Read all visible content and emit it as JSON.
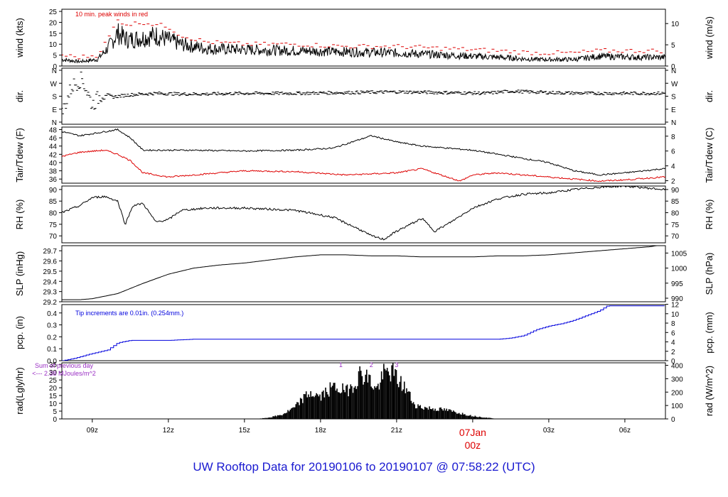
{
  "footer_title": "UW Rooftop Data for 20190106  to  20190107 @ 07:58:22  (UTC)",
  "colors": {
    "frame": "#000000",
    "accent_red": "#dd0000",
    "accent_blue": "#0000dd",
    "accent_purple": "#9a2fc4",
    "title_blue": "#1a1ad0"
  },
  "chart_data": [
    {
      "id": "wind",
      "type": "line",
      "ylabel": "wind (kts)",
      "y2label": "wind (m/s)",
      "ylim": [
        0,
        26
      ],
      "yticks": [
        "0",
        "5",
        "10",
        "15",
        "20",
        "25"
      ],
      "y2ticks": [
        "0",
        "5",
        "10"
      ],
      "annotation": "10 min. peak winds in red",
      "series": [
        {
          "name": "",
          "x": [
            7.8,
            8.5,
            9.2,
            9.6,
            10.0,
            10.4,
            11.0,
            11.5,
            12.0,
            12.5,
            13.5,
            15.0,
            17.0,
            19.0,
            21.0,
            23.0,
            25.0,
            26.5,
            28.0,
            29.0,
            30.5,
            31.5
          ],
          "values": [
            3,
            2,
            3,
            8,
            15,
            12,
            13,
            14,
            12,
            10,
            8,
            7.5,
            7,
            6.5,
            6,
            5,
            4,
            3,
            3,
            4.5,
            4,
            4
          ]
        },
        {
          "name": "10 min. peak winds in red",
          "x": [
            7.8,
            8.5,
            9.2,
            9.6,
            10.0,
            10.4,
            11.0,
            11.5,
            12.0,
            12.5,
            13.5,
            15.0,
            17.0,
            19.0,
            21.0,
            23.0,
            25.0,
            26.5,
            28.0,
            29.0,
            30.5,
            31.5
          ],
          "values": [
            5,
            4,
            5,
            12,
            21,
            19,
            20,
            19,
            18,
            14,
            11,
            10,
            10,
            9,
            9,
            8,
            7,
            6,
            6,
            7,
            7,
            7
          ]
        }
      ]
    },
    {
      "id": "dir",
      "type": "scatter",
      "ylabel": "dir.",
      "y2label": "dir.",
      "ylim": [
        0,
        360
      ],
      "yticks": [
        "N",
        "E",
        "S",
        "W",
        "N"
      ],
      "y2ticks": [
        "N",
        "E",
        "S",
        "W",
        "N"
      ],
      "series": [
        {
          "name": "",
          "x": [
            7.8,
            8.2,
            8.6,
            9.0,
            9.4,
            9.8,
            10.5,
            11.5,
            12.5,
            13.5,
            15.0,
            17.0,
            19.0,
            21.0,
            23.0,
            24.5,
            25.5,
            27.0,
            28.5,
            30.0,
            31.5
          ],
          "values": [
            60,
            250,
            300,
            120,
            200,
            175,
            190,
            200,
            195,
            195,
            200,
            200,
            205,
            210,
            205,
            200,
            215,
            205,
            200,
            200,
            200
          ]
        }
      ]
    },
    {
      "id": "temp",
      "type": "line",
      "ylabel": "Tair/Tdew (F)",
      "y2label": "Tair/Tdew (C)",
      "ylim": [
        35,
        48.6
      ],
      "yticks": [
        "36",
        "38",
        "40",
        "42",
        "44",
        "46",
        "48"
      ],
      "y2ticks": [
        "2",
        "4",
        "6",
        "8"
      ],
      "series": [
        {
          "name": "Tair",
          "x": [
            7.8,
            8.5,
            9.5,
            10.0,
            10.5,
            11.0,
            12.0,
            13.0,
            15.0,
            17.0,
            18.5,
            19.5,
            20.0,
            21.0,
            22.0,
            23.0,
            24.0,
            25.0,
            26.0,
            27.0,
            28.0,
            29.0,
            30.0,
            31.5
          ],
          "values": [
            47.5,
            46.5,
            47.5,
            48,
            46,
            43,
            43,
            43,
            42.8,
            43,
            43.5,
            45.5,
            46.5,
            45,
            44,
            43.5,
            43,
            42,
            41,
            40,
            38,
            37,
            37.5,
            38.5
          ]
        },
        {
          "name": "Tdew",
          "x": [
            7.8,
            8.5,
            9.5,
            10.0,
            10.5,
            11.0,
            12.0,
            13.0,
            15.0,
            17.0,
            19.0,
            21.0,
            22.0,
            23.0,
            23.5,
            24.0,
            25.0,
            26.0,
            27.0,
            28.0,
            29.0,
            30.0,
            31.5
          ],
          "values": [
            41.5,
            42.5,
            43,
            42,
            40.5,
            37.5,
            36.5,
            37,
            38,
            37.8,
            37,
            37.5,
            38.5,
            36.5,
            35.5,
            37,
            37.5,
            37,
            36.5,
            36,
            35.5,
            35.8,
            36.5
          ]
        }
      ]
    },
    {
      "id": "rh",
      "type": "line",
      "ylabel": "RH (%)",
      "y2label": "RH (%)",
      "ylim": [
        67,
        91.5
      ],
      "yticks": [
        "70",
        "75",
        "80",
        "85",
        "90"
      ],
      "y2ticks": [
        "70",
        "75",
        "80",
        "85",
        "90"
      ],
      "series": [
        {
          "name": "",
          "x": [
            7.8,
            8.5,
            9.0,
            9.5,
            10.0,
            10.3,
            10.6,
            11.0,
            11.5,
            12.0,
            12.5,
            13.5,
            15.0,
            17.0,
            18.5,
            19.5,
            20.0,
            20.5,
            21.0,
            22.0,
            22.5,
            23.0,
            24.0,
            25.0,
            26.0,
            27.0,
            28.0,
            29.0,
            30.0,
            31.5
          ],
          "values": [
            80,
            83,
            86.5,
            87,
            85,
            75,
            83,
            84,
            76,
            77,
            81,
            82,
            82,
            81,
            78,
            73,
            70,
            68.5,
            72,
            77.5,
            72,
            75,
            82,
            86,
            88,
            88.5,
            90,
            91,
            91.5,
            90
          ]
        }
      ]
    },
    {
      "id": "slp",
      "type": "line",
      "ylabel": "SLP (inHg)",
      "y2label": "SLP (hPa)",
      "ylim": [
        29.2,
        29.75
      ],
      "yticks": [
        "29.2",
        "29.3",
        "29.4",
        "29.5",
        "29.6",
        "29.7"
      ],
      "y2ticks": [
        "990",
        "995",
        "1000",
        "1005"
      ],
      "series": [
        {
          "name": "",
          "x": [
            7.8,
            8.5,
            9.0,
            10.0,
            11.0,
            12.0,
            13.0,
            14.0,
            15.0,
            16.0,
            17.0,
            18.0,
            19.0,
            20.0,
            21.0,
            22.0,
            23.0,
            24.0,
            25.0,
            26.0,
            27.0,
            28.0,
            29.0,
            30.0,
            31.0,
            31.5
          ],
          "values": [
            29.22,
            29.22,
            29.23,
            29.28,
            29.38,
            29.47,
            29.53,
            29.56,
            29.58,
            29.61,
            29.64,
            29.66,
            29.66,
            29.65,
            29.65,
            29.64,
            29.64,
            29.64,
            29.65,
            29.65,
            29.66,
            29.68,
            29.7,
            29.72,
            29.74,
            29.76
          ]
        }
      ]
    },
    {
      "id": "pcp",
      "type": "line",
      "ylabel": "pcp. (in)",
      "y2label": "pcp. (mm)",
      "ylim": [
        0,
        0.47
      ],
      "yticks": [
        "0.0",
        "0.1",
        "0.2",
        "0.3",
        "0.4"
      ],
      "y2ticks": [
        "0",
        "2",
        "4",
        "6",
        "8",
        "10",
        "12"
      ],
      "annotation": "Tip increments are 0.01in. (0.254mm.)",
      "series": [
        {
          "name": "",
          "x": [
            7.8,
            8.3,
            8.8,
            9.2,
            9.6,
            10.0,
            10.5,
            11.0,
            12.0,
            13.0,
            15.0,
            18.0,
            21.0,
            23.5,
            25.0,
            25.5,
            26.0,
            26.5,
            27.0,
            27.5,
            28.0,
            28.5,
            29.0,
            29.3,
            29.6,
            31.5
          ],
          "values": [
            0.0,
            0.02,
            0.05,
            0.07,
            0.09,
            0.15,
            0.17,
            0.17,
            0.17,
            0.18,
            0.18,
            0.18,
            0.18,
            0.18,
            0.18,
            0.19,
            0.21,
            0.26,
            0.29,
            0.31,
            0.34,
            0.38,
            0.42,
            0.46,
            0.46,
            0.46
          ]
        }
      ]
    },
    {
      "id": "rad",
      "type": "area",
      "ylabel": "rad(Lgly/hr)",
      "y2label": "rad (W/m^2)",
      "ylim": [
        0,
        36
      ],
      "yticks": [
        "0",
        "5",
        "10",
        "15",
        "20",
        "25",
        "30",
        "35"
      ],
      "y2ticks": [
        "0",
        "100",
        "200",
        "300",
        "400"
      ],
      "annotation_left": [
        "Sum of previous day",
        "<--- 2.38 MJoules/m^2"
      ],
      "markers": [
        "1",
        "2",
        "3"
      ],
      "markers_x": [
        18.8,
        20.0,
        21.0
      ],
      "series": [
        {
          "name": "",
          "x": [
            15.5,
            16.0,
            16.5,
            17.0,
            17.3,
            17.6,
            18.0,
            18.3,
            18.6,
            19.0,
            19.3,
            19.6,
            19.9,
            20.2,
            20.5,
            20.8,
            21.1,
            21.4,
            21.7,
            22.0,
            22.5,
            23.0,
            23.5,
            24.0,
            24.5,
            25.0
          ],
          "values": [
            0,
            1,
            3,
            8,
            14,
            18,
            15,
            20,
            22,
            19,
            24,
            32,
            28,
            20,
            31,
            33,
            26,
            20,
            10,
            8,
            7,
            6,
            4,
            2,
            1,
            0
          ]
        }
      ]
    },
    {
      "id": "time-axis",
      "type": "axis",
      "ticks": [
        "09z",
        "12z",
        "15z",
        "18z",
        "21z",
        "",
        "03z",
        "06z"
      ],
      "tick_values": [
        9,
        12,
        15,
        18,
        21,
        24,
        27,
        30
      ],
      "date_label": "07Jan",
      "date_sublabel": "00z"
    }
  ]
}
